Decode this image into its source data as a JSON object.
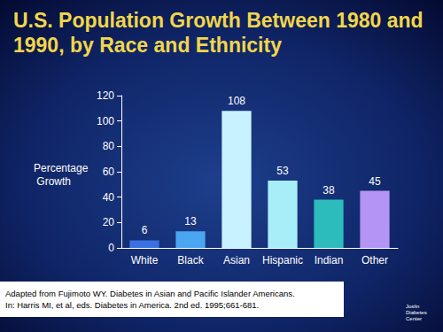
{
  "chart_data": {
    "type": "bar",
    "title": "U.S. Population Growth Between 1980 and 1990, by Race and Ethnicity",
    "y_label": "Percentage Growth",
    "categories": [
      "White",
      "Black",
      "Asian",
      "Hispanic",
      "Indian",
      "Other"
    ],
    "values": [
      6,
      13,
      108,
      53,
      38,
      45
    ],
    "colors": [
      "#3a70e0",
      "#4aa6f0",
      "#c8f2ff",
      "#a8eef8",
      "#2cbcbc",
      "#b494f4"
    ],
    "ylim": [
      0,
      120
    ],
    "yticks": [
      0,
      20,
      40,
      60,
      80,
      100,
      120
    ],
    "grid": false,
    "data_labels": true,
    "annotations": {
      "source": [
        "Adapted from Fujimoto WY. Diabetes in Asian and Pacific Islander Americans.",
        "In: Harris MI, et al, eds. Diabetes in America. 2nd ed. 1995;661-681."
      ],
      "logo": "Joslin Diabetes Center"
    }
  }
}
